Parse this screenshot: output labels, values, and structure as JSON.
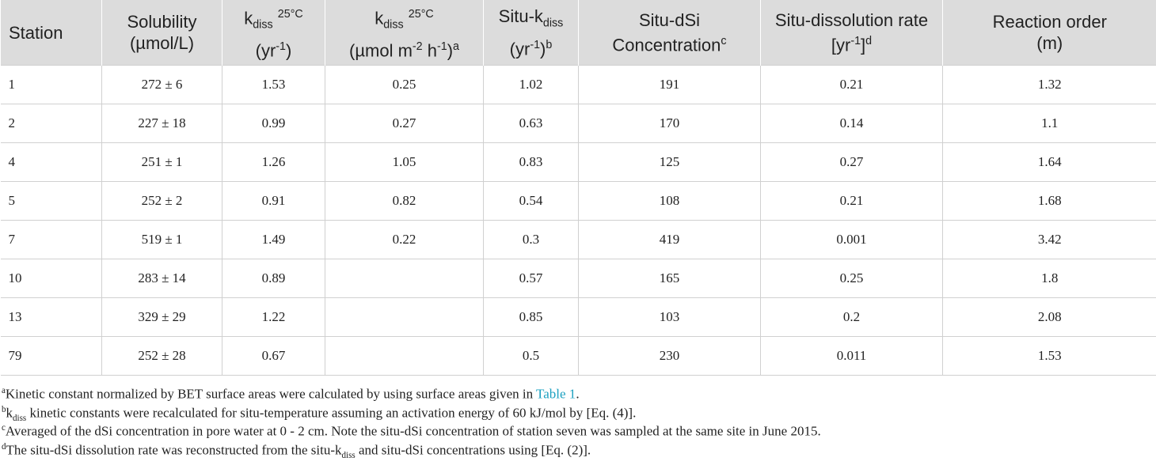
{
  "table": {
    "header": [
      [
        "Station"
      ],
      [
        "Solubility",
        "(µmol/L)"
      ],
      [
        "k",
        "diss",
        "25°C",
        "(yr",
        "-1",
        ")"
      ],
      [
        "k",
        "diss",
        "25°C",
        "(µmol m",
        "-2",
        " h",
        "-1",
        ")",
        "a"
      ],
      [
        "Situ-k",
        "diss",
        "(yr",
        "-1",
        ")",
        "b"
      ],
      [
        "Situ-dSi",
        "Concentration",
        "c"
      ],
      [
        "Situ-dissolution rate",
        "[yr",
        "-1",
        "]",
        "d"
      ],
      [
        "Reaction order",
        "(m)"
      ]
    ],
    "rows": [
      [
        1,
        "272 ± 6",
        1.53,
        0.25,
        1.02,
        191,
        0.21,
        1.32
      ],
      [
        2,
        "227 ± 18",
        0.99,
        0.27,
        0.63,
        170,
        0.14,
        1.1
      ],
      [
        4,
        "251 ± 1",
        1.26,
        1.05,
        0.83,
        125,
        0.27,
        1.64
      ],
      [
        5,
        "252 ± 2",
        0.91,
        0.82,
        0.54,
        108,
        0.21,
        1.68
      ],
      [
        7,
        "519 ± 1",
        1.49,
        0.22,
        0.3,
        419,
        0.001,
        3.42
      ],
      [
        10,
        "283 ± 14",
        0.89,
        null,
        0.57,
        165,
        0.25,
        1.8
      ],
      [
        13,
        "329 ± 29",
        1.22,
        null,
        0.85,
        103,
        0.2,
        2.08
      ],
      [
        79,
        "252 ± 28",
        0.67,
        null,
        0.5,
        230,
        0.011,
        1.53
      ]
    ]
  },
  "footnotes": [
    [
      "a",
      "Kinetic constant normalized by BET surface areas were calculated by using surface areas given in ",
      "Table 1",
      "."
    ],
    [
      "b",
      "k",
      "diss",
      " kinetic constants were recalculated for situ-temperature assuming an activation energy of 60 kJ/mol by [Eq. (4)]."
    ],
    [
      "c",
      "Averaged of the dSi concentration in pore water at 0 - 2 cm. Note the situ-dSi concentration of station seven was sampled at the same site in June 2015."
    ],
    [
      "d",
      "The situ-dSi dissolution rate was reconstructed from the situ-k",
      "diss",
      " and situ-dSi concentrations using [Eq. (2)]."
    ]
  ]
}
